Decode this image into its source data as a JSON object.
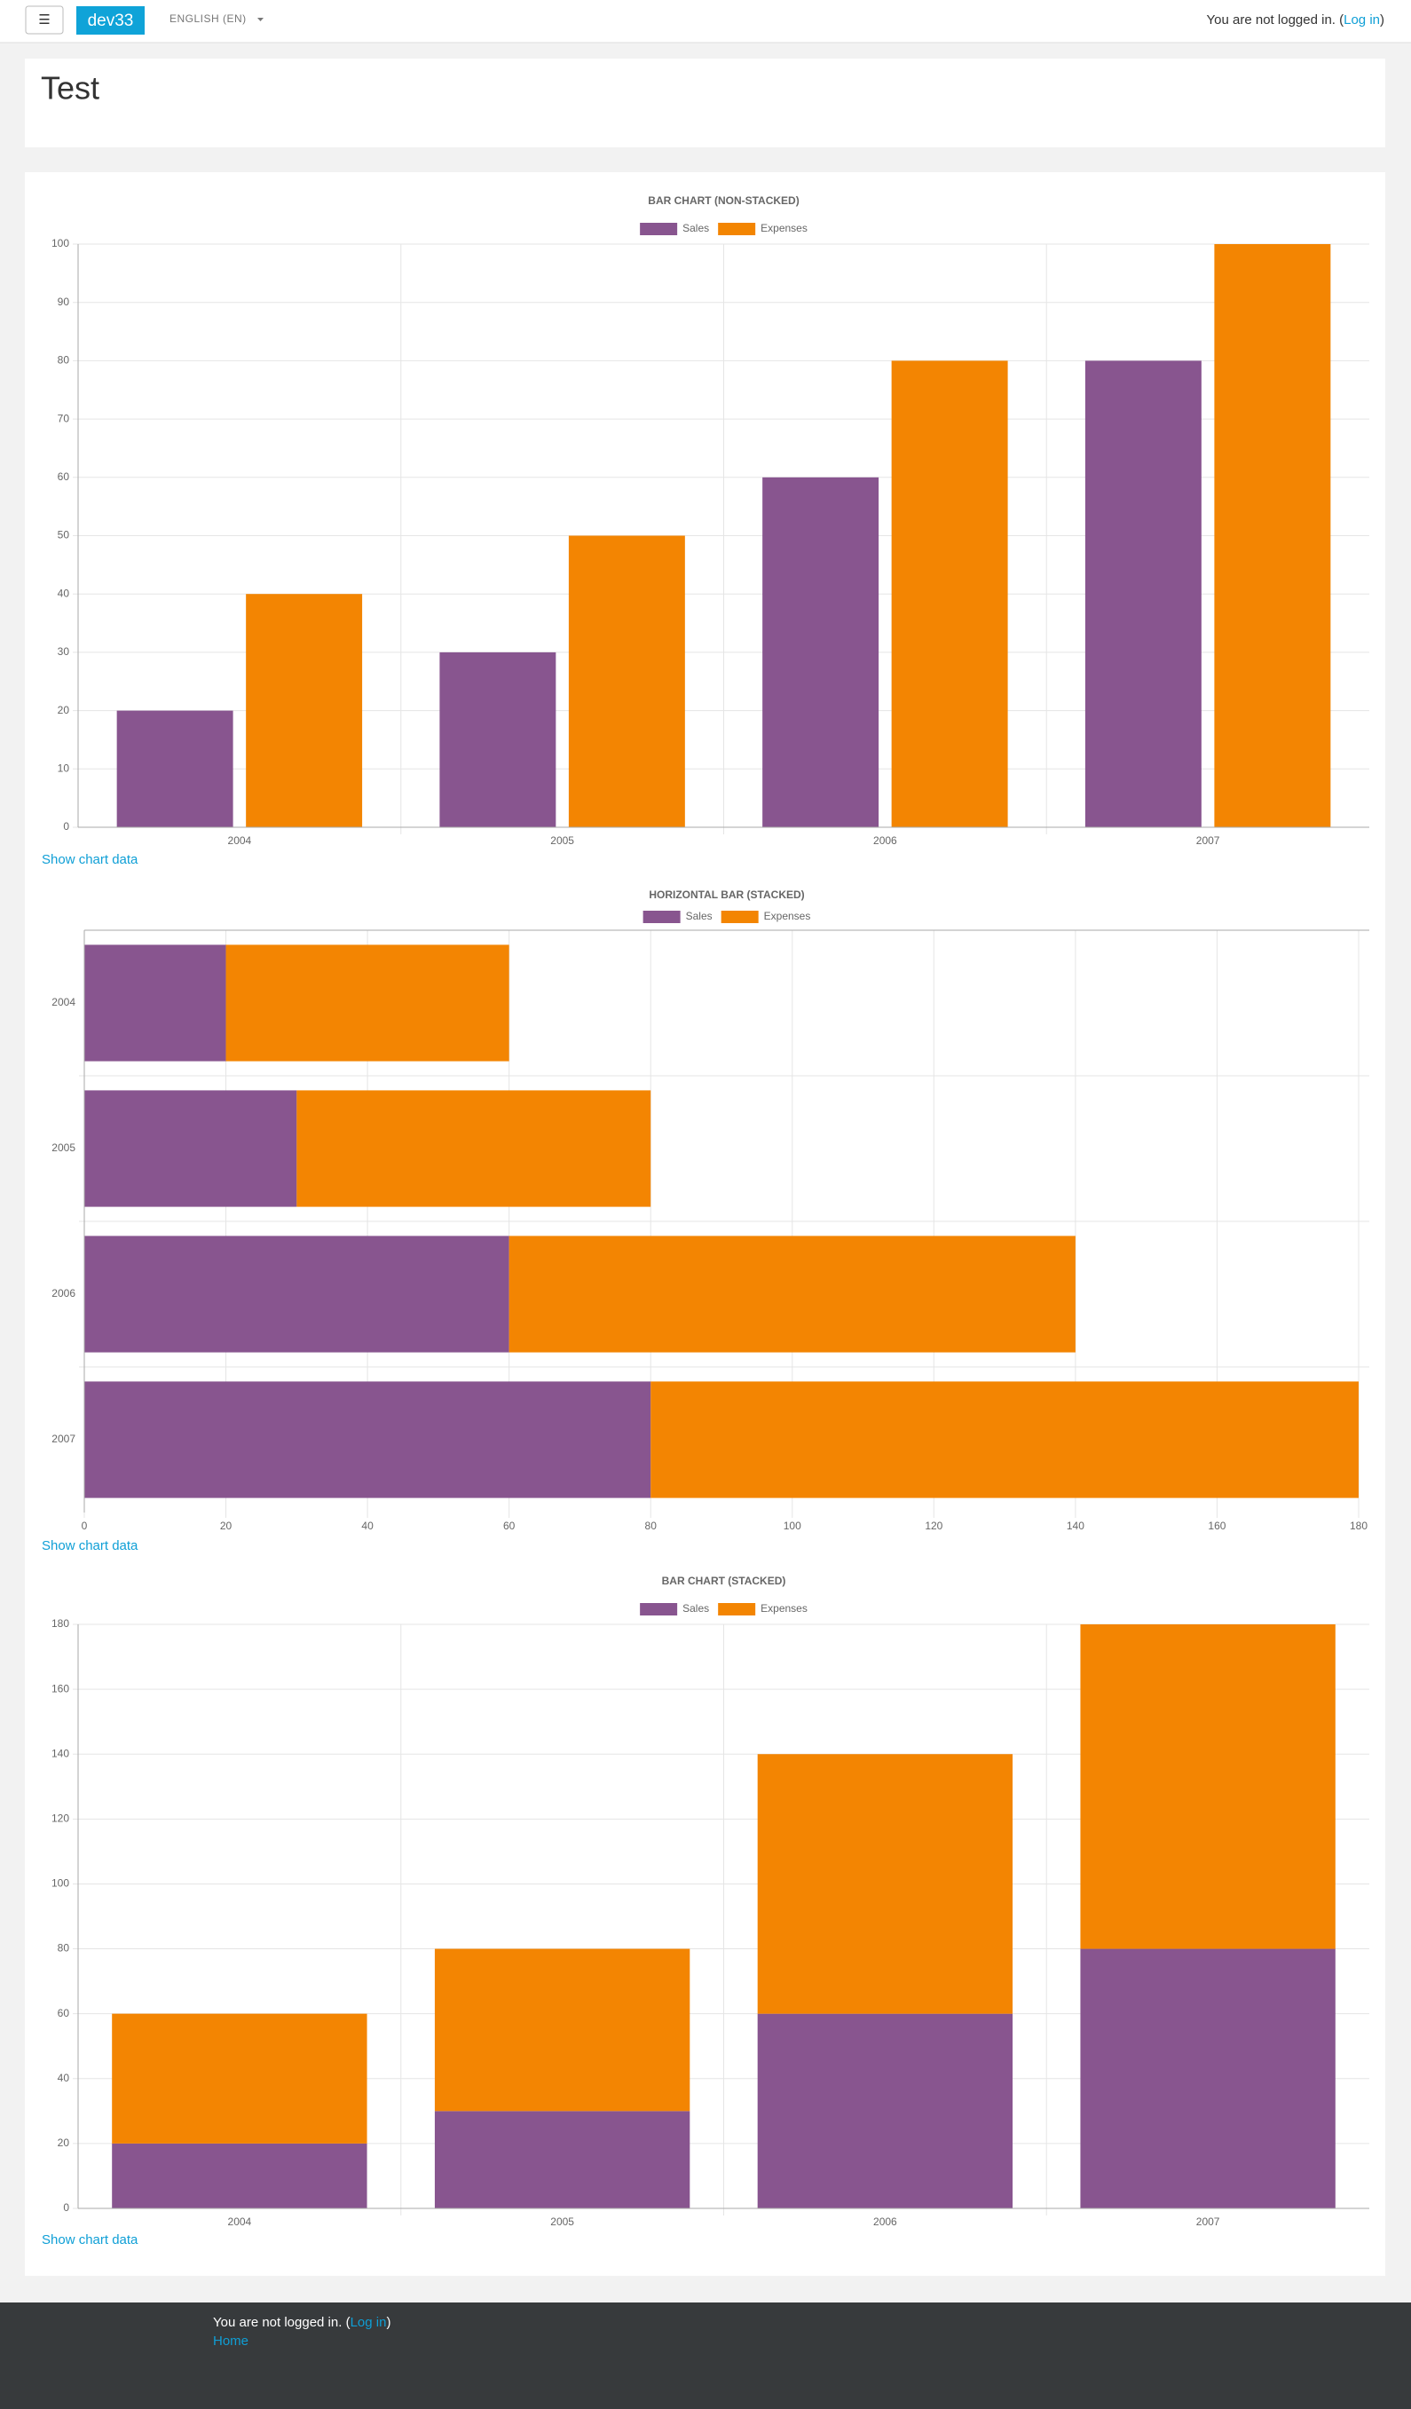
{
  "navbar": {
    "menu_icon": "☰",
    "site_name": "dev33",
    "language": "ENGLISH (EN)",
    "login_parts": [
      "You are not logged in. (",
      "Log in",
      ")"
    ]
  },
  "page_title": "Test",
  "show_data_links": [
    "Show chart data",
    "Show chart data",
    "Show chart data"
  ],
  "chart_data": [
    {
      "type": "bar",
      "title": "Bar chart (non-stacked)",
      "stacked": false,
      "horizontal": false,
      "grid": true,
      "categories": [
        "2004",
        "2005",
        "2006",
        "2007"
      ],
      "series": [
        {
          "name": "Sales",
          "color": "#88558f",
          "values": [
            20,
            30,
            60,
            80
          ]
        },
        {
          "name": "Expenses",
          "color": "#f38502",
          "values": [
            40,
            50,
            80,
            100
          ]
        }
      ],
      "ylim": [
        0,
        100
      ],
      "yticks": [
        0,
        10,
        20,
        30,
        40,
        50,
        60,
        70,
        80,
        90,
        100
      ]
    },
    {
      "type": "bar",
      "title": "Horizontal bar (stacked)",
      "stacked": true,
      "horizontal": true,
      "grid": true,
      "categories": [
        "2004",
        "2005",
        "2006",
        "2007"
      ],
      "series": [
        {
          "name": "Sales",
          "color": "#88558f",
          "values": [
            20,
            30,
            60,
            80
          ]
        },
        {
          "name": "Expenses",
          "color": "#f38502",
          "values": [
            40,
            50,
            80,
            100
          ]
        }
      ],
      "xlim": [
        0,
        180
      ],
      "xticks": [
        0,
        20,
        40,
        60,
        80,
        100,
        120,
        140,
        160,
        180
      ]
    },
    {
      "type": "bar",
      "title": "Bar chart (stacked)",
      "stacked": true,
      "horizontal": false,
      "grid": true,
      "categories": [
        "2004",
        "2005",
        "2006",
        "2007"
      ],
      "series": [
        {
          "name": "Sales",
          "color": "#88558f",
          "values": [
            20,
            30,
            60,
            80
          ]
        },
        {
          "name": "Expenses",
          "color": "#f38502",
          "values": [
            40,
            50,
            80,
            100
          ]
        }
      ],
      "ylim": [
        0,
        180
      ],
      "yticks": [
        0,
        20,
        40,
        60,
        80,
        100,
        120,
        140,
        160,
        180
      ]
    }
  ],
  "footer": {
    "login_parts": [
      "You are not logged in. (",
      "Log in",
      ")"
    ],
    "home": "Home"
  }
}
